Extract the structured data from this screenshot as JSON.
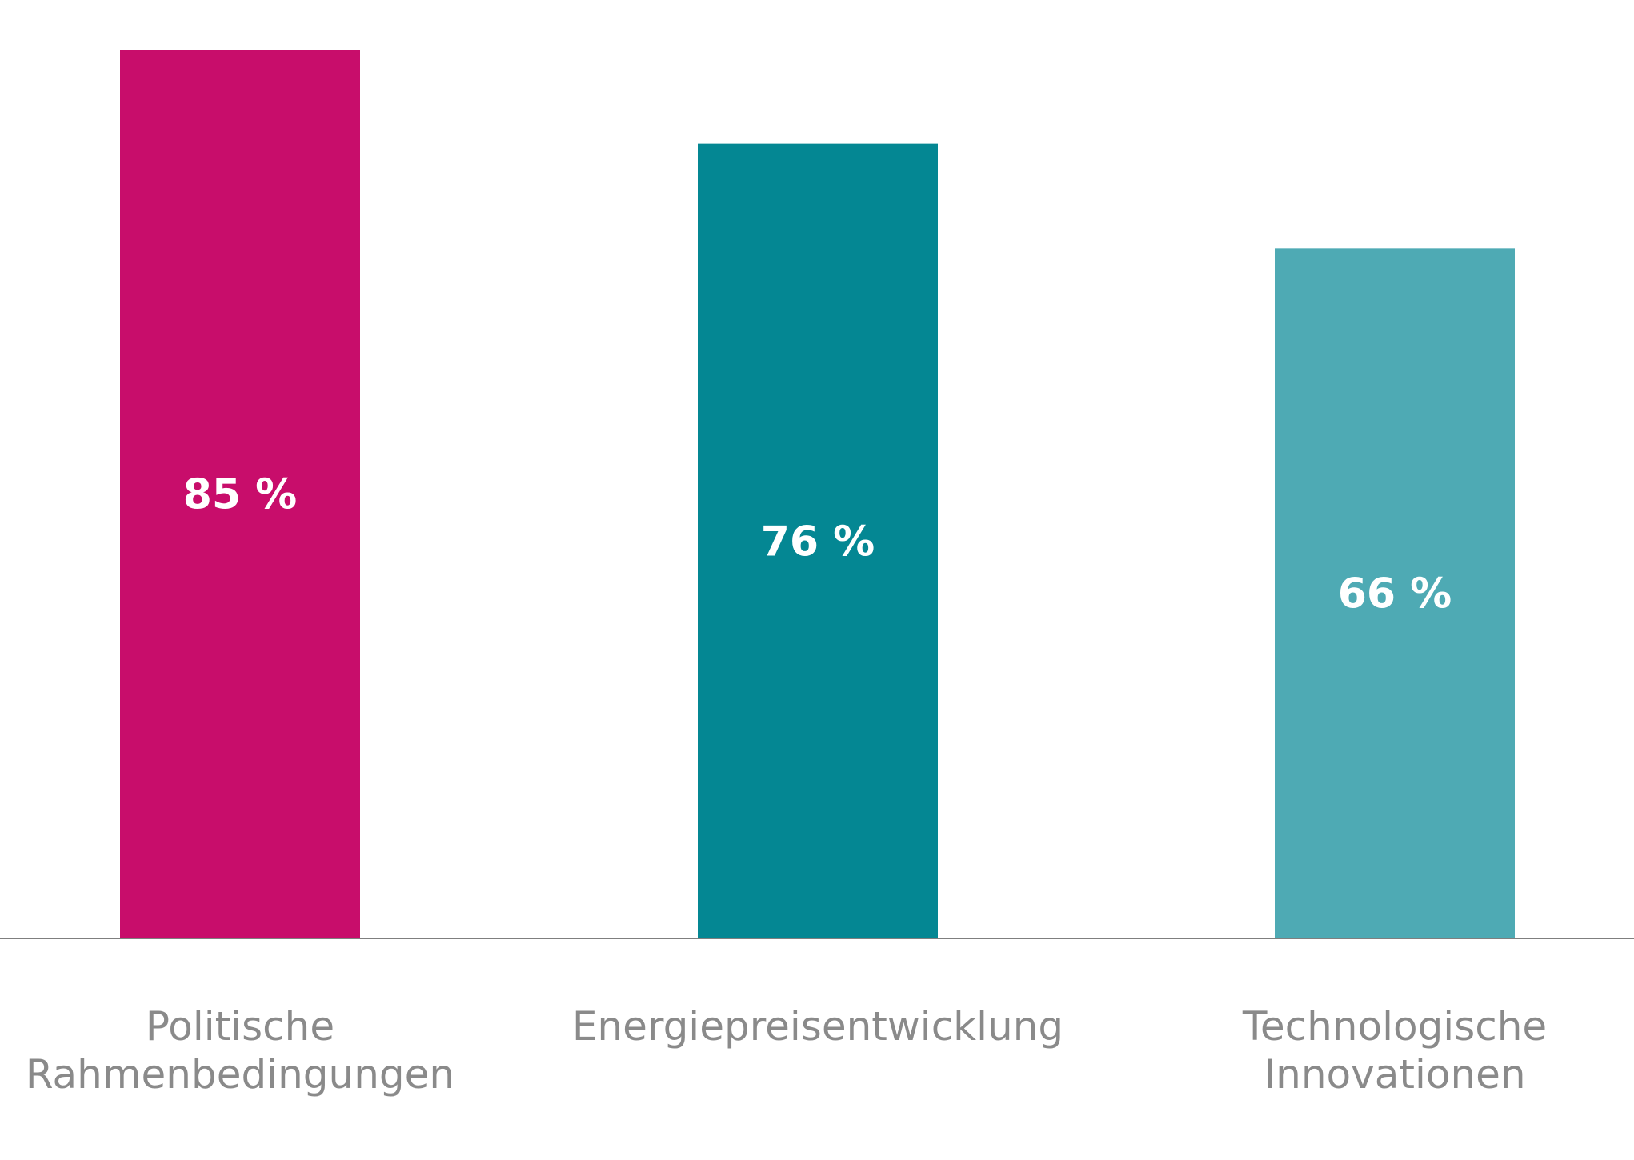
{
  "chart_data": {
    "type": "bar",
    "categories": [
      "Politische Rahmenbedingungen",
      "Energiepreisentwicklung",
      "Technologische Innovationen"
    ],
    "category_labels": [
      [
        "Politische",
        "Rahmenbedingungen"
      ],
      [
        "Energiepreisentwicklung"
      ],
      [
        "Technologische",
        "Innovationen"
      ]
    ],
    "values": [
      85,
      76,
      66
    ],
    "value_labels": [
      "85 %",
      "76 %",
      "66 %"
    ],
    "colors": [
      "#C80D6B",
      "#048793",
      "#4EAAB4"
    ],
    "ylim": [
      0,
      85
    ],
    "title": "",
    "xlabel": "",
    "ylabel": "",
    "grid": false,
    "axis_color": "#7f7f7f",
    "category_label_color": "#8a8a8a",
    "value_label_color": "#ffffff"
  }
}
